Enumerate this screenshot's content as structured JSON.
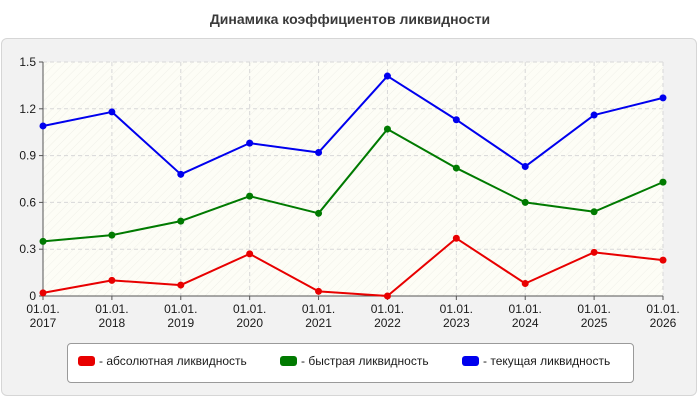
{
  "chart_data": {
    "type": "line",
    "title": "Динамика коэффициентов ликвидности",
    "categories": [
      [
        "01.01.",
        "2017"
      ],
      [
        "01.01.",
        "2018"
      ],
      [
        "01.01.",
        "2019"
      ],
      [
        "01.01.",
        "2020"
      ],
      [
        "01.01.",
        "2021"
      ],
      [
        "01.01.",
        "2022"
      ],
      [
        "01.01.",
        "2023"
      ],
      [
        "01.01.",
        "2024"
      ],
      [
        "01.01.",
        "2025"
      ],
      [
        "01.01.",
        "2026"
      ]
    ],
    "ylim": [
      0,
      1.5
    ],
    "yticks": [
      "0",
      "0.3",
      "0.6",
      "0.9",
      "1.2",
      "1.5"
    ],
    "ytick_values": [
      0,
      0.3,
      0.6,
      0.9,
      1.2,
      1.5
    ],
    "grid": true,
    "legend_position": "bottom",
    "series": [
      {
        "name": "- абсолютная ликвидность",
        "color": "#e80000",
        "values": [
          0.02,
          0.1,
          0.07,
          0.27,
          0.03,
          0.0,
          0.37,
          0.08,
          0.28,
          0.23
        ]
      },
      {
        "name": "- быстрая ликвидность",
        "color": "#007a00",
        "values": [
          0.35,
          0.39,
          0.48,
          0.64,
          0.53,
          1.07,
          0.82,
          0.6,
          0.54,
          0.73
        ]
      },
      {
        "name": "- текущая ликвидность",
        "color": "#0000ee",
        "values": [
          1.09,
          1.18,
          0.78,
          0.98,
          0.92,
          1.41,
          1.13,
          0.83,
          1.16,
          1.27
        ]
      }
    ]
  }
}
